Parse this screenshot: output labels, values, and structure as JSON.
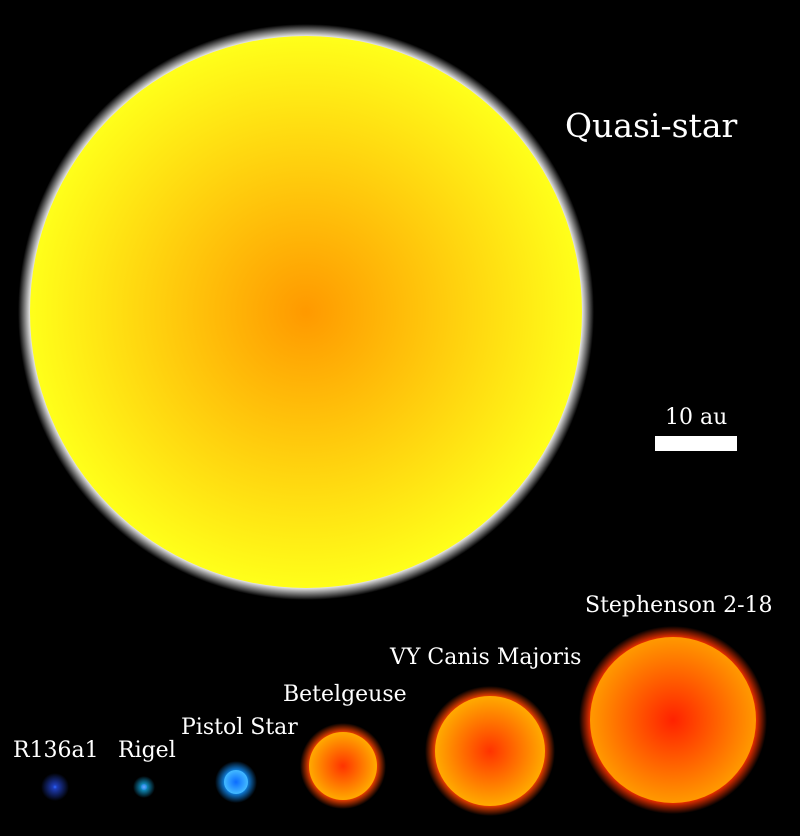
{
  "diagram": {
    "scale_bar": {
      "label": "10 au",
      "color": "#ffffff"
    },
    "stars": [
      {
        "name": "Quasi-star",
        "core_color": "#ff9900",
        "edge_color": "#ffff1a",
        "glow_color": "#ffffff"
      },
      {
        "name": "R136a1",
        "core_color": "#3366ff",
        "edge_color": "#1a3fbf",
        "glow_color": "#2244cc"
      },
      {
        "name": "Rigel",
        "core_color": "#66aaff",
        "edge_color": "#2288dd",
        "glow_color": "#1199cc"
      },
      {
        "name": "Pistol Star",
        "core_color": "#0a6cff",
        "edge_color": "#44bbff",
        "glow_color": "#1188ee"
      },
      {
        "name": "Betelgeuse",
        "core_color": "#ff3300",
        "edge_color": "#ffaa00",
        "glow_color": "#ff4400"
      },
      {
        "name": "VY Canis Majoris",
        "core_color": "#ff3300",
        "edge_color": "#ffaa00",
        "glow_color": "#ff4400"
      },
      {
        "name": "Stephenson 2-18",
        "core_color": "#ff2200",
        "edge_color": "#ff9900",
        "glow_color": "#ff3300"
      }
    ]
  }
}
